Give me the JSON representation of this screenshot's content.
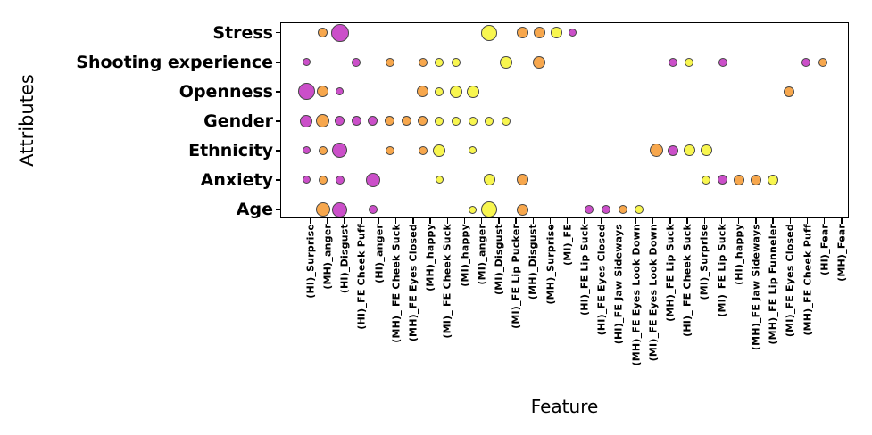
{
  "chart_data": {
    "type": "scatter",
    "variant": "bubble-matrix",
    "title": "",
    "xlabel": "Feature",
    "ylabel": "Attributes",
    "legend": null,
    "grid": false,
    "colors": {
      "magenta": "#cb4fc9",
      "orange": "#f7a74d",
      "yellow": "#f8f64f",
      "edge": "#454545"
    },
    "x_categories": [
      "(HI)_Surprise",
      "(MH)_anger",
      "(HI)_Disgust",
      "(HI)_FE Cheek Puff",
      "(HI)_anger",
      "(MH)_ FE Cheek Suck",
      "(MH)_FE Eyes Closed",
      "(MH)_happy",
      "(MI)_ FE Cheek Suck",
      "(MI)_happy",
      "(MI)_anger",
      "(MI)_Disgust",
      "(MI)_FE Lip Pucker",
      "(MH)_Disgust",
      "(MH)_Surprise",
      "(MI)_FE",
      "(HI)_FE Lip Suck",
      "(HI)_FE Eyes Closed",
      "(HI)_FE Jaw Sideways",
      "(MH)_FE Eyes Look Down",
      "(MI)_FE Eyes Look Down",
      "(MH)_FE Lip Suck",
      "(HI)_ FE Cheek Suck",
      "(MI)_Surprise",
      "(MI)_FE Lip Suck",
      "(HI)_happy",
      "(MH)_FE Jaw Sideways",
      "(MH)_FE Lip Funneler",
      "(MI)_FE Eyes Closed",
      "(MH)_FE Cheek Puff",
      "(HI)_Fear",
      "(MH)_Fear"
    ],
    "y_categories": [
      "Stress",
      "Shooting experience",
      "Openness",
      "Gender",
      "Ethnicity",
      "Anxiety",
      "Age"
    ],
    "rows": [
      {
        "attribute": "Stress",
        "bubbles": [
          {
            "feature": 2,
            "color": "orange",
            "d": 11
          },
          {
            "feature": 3,
            "color": "magenta",
            "d": 20
          },
          {
            "feature": 12,
            "color": "yellow",
            "d": 18
          },
          {
            "feature": 14,
            "color": "orange",
            "d": 13
          },
          {
            "feature": 15,
            "color": "orange",
            "d": 13
          },
          {
            "feature": 16,
            "color": "yellow",
            "d": 13
          },
          {
            "feature": 17,
            "color": "magenta",
            "d": 9
          }
        ]
      },
      {
        "attribute": "Shooting experience",
        "bubbles": [
          {
            "feature": 1,
            "color": "magenta",
            "d": 9
          },
          {
            "feature": 4,
            "color": "magenta",
            "d": 10
          },
          {
            "feature": 6,
            "color": "orange",
            "d": 10
          },
          {
            "feature": 8,
            "color": "orange",
            "d": 10
          },
          {
            "feature": 9,
            "color": "yellow",
            "d": 10
          },
          {
            "feature": 10,
            "color": "yellow",
            "d": 10
          },
          {
            "feature": 13,
            "color": "yellow",
            "d": 14
          },
          {
            "feature": 15,
            "color": "orange",
            "d": 14
          },
          {
            "feature": 23,
            "color": "magenta",
            "d": 10
          },
          {
            "feature": 24,
            "color": "yellow",
            "d": 10
          },
          {
            "feature": 26,
            "color": "magenta",
            "d": 10
          },
          {
            "feature": 31,
            "color": "magenta",
            "d": 10
          },
          {
            "feature": 32,
            "color": "orange",
            "d": 10
          }
        ]
      },
      {
        "attribute": "Openness",
        "bubbles": [
          {
            "feature": 1,
            "color": "magenta",
            "d": 19
          },
          {
            "feature": 2,
            "color": "orange",
            "d": 13
          },
          {
            "feature": 3,
            "color": "magenta",
            "d": 9
          },
          {
            "feature": 8,
            "color": "orange",
            "d": 13
          },
          {
            "feature": 9,
            "color": "yellow",
            "d": 10
          },
          {
            "feature": 10,
            "color": "yellow",
            "d": 14
          },
          {
            "feature": 11,
            "color": "yellow",
            "d": 14
          },
          {
            "feature": 30,
            "color": "orange",
            "d": 12
          }
        ]
      },
      {
        "attribute": "Gender",
        "bubbles": [
          {
            "feature": 1,
            "color": "magenta",
            "d": 14
          },
          {
            "feature": 2,
            "color": "orange",
            "d": 15
          },
          {
            "feature": 3,
            "color": "magenta",
            "d": 11
          },
          {
            "feature": 4,
            "color": "magenta",
            "d": 11
          },
          {
            "feature": 5,
            "color": "magenta",
            "d": 11
          },
          {
            "feature": 6,
            "color": "orange",
            "d": 11
          },
          {
            "feature": 7,
            "color": "orange",
            "d": 11
          },
          {
            "feature": 8,
            "color": "orange",
            "d": 11
          },
          {
            "feature": 9,
            "color": "yellow",
            "d": 10
          },
          {
            "feature": 10,
            "color": "yellow",
            "d": 10
          },
          {
            "feature": 11,
            "color": "yellow",
            "d": 10
          },
          {
            "feature": 12,
            "color": "yellow",
            "d": 10
          },
          {
            "feature": 13,
            "color": "yellow",
            "d": 10
          }
        ]
      },
      {
        "attribute": "Ethnicity",
        "bubbles": [
          {
            "feature": 1,
            "color": "magenta",
            "d": 9
          },
          {
            "feature": 2,
            "color": "orange",
            "d": 10
          },
          {
            "feature": 3,
            "color": "magenta",
            "d": 17
          },
          {
            "feature": 6,
            "color": "orange",
            "d": 10
          },
          {
            "feature": 8,
            "color": "orange",
            "d": 10
          },
          {
            "feature": 9,
            "color": "yellow",
            "d": 14
          },
          {
            "feature": 11,
            "color": "yellow",
            "d": 9
          },
          {
            "feature": 22,
            "color": "orange",
            "d": 15
          },
          {
            "feature": 23,
            "color": "magenta",
            "d": 12
          },
          {
            "feature": 24,
            "color": "yellow",
            "d": 13
          },
          {
            "feature": 25,
            "color": "yellow",
            "d": 13
          }
        ]
      },
      {
        "attribute": "Anxiety",
        "bubbles": [
          {
            "feature": 1,
            "color": "magenta",
            "d": 9
          },
          {
            "feature": 2,
            "color": "orange",
            "d": 10
          },
          {
            "feature": 3,
            "color": "magenta",
            "d": 10
          },
          {
            "feature": 5,
            "color": "magenta",
            "d": 16
          },
          {
            "feature": 9,
            "color": "yellow",
            "d": 9
          },
          {
            "feature": 12,
            "color": "yellow",
            "d": 13
          },
          {
            "feature": 14,
            "color": "orange",
            "d": 13
          },
          {
            "feature": 25,
            "color": "yellow",
            "d": 10
          },
          {
            "feature": 26,
            "color": "magenta",
            "d": 11
          },
          {
            "feature": 27,
            "color": "orange",
            "d": 12
          },
          {
            "feature": 28,
            "color": "orange",
            "d": 12
          },
          {
            "feature": 29,
            "color": "yellow",
            "d": 12
          }
        ]
      },
      {
        "attribute": "Age",
        "bubbles": [
          {
            "feature": 2,
            "color": "orange",
            "d": 16
          },
          {
            "feature": 3,
            "color": "magenta",
            "d": 17
          },
          {
            "feature": 5,
            "color": "magenta",
            "d": 10
          },
          {
            "feature": 11,
            "color": "yellow",
            "d": 9
          },
          {
            "feature": 12,
            "color": "yellow",
            "d": 18
          },
          {
            "feature": 14,
            "color": "orange",
            "d": 13
          },
          {
            "feature": 18,
            "color": "magenta",
            "d": 10
          },
          {
            "feature": 19,
            "color": "magenta",
            "d": 10
          },
          {
            "feature": 20,
            "color": "orange",
            "d": 10
          },
          {
            "feature": 21,
            "color": "yellow",
            "d": 10
          }
        ]
      }
    ]
  }
}
